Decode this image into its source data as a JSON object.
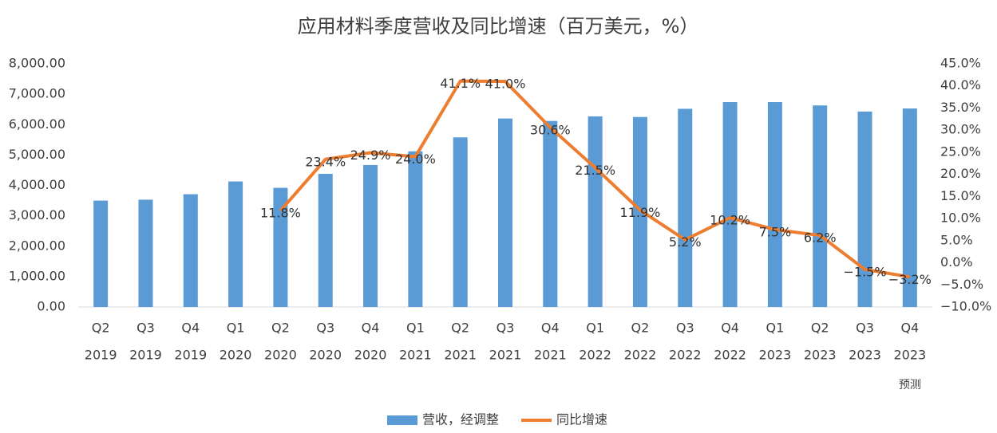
{
  "chart_data": {
    "type": "bar-line",
    "title": "应用材料季度营收及同比增速（百万美元，%）",
    "categories": [
      [
        "Q2",
        "2019"
      ],
      [
        "Q3",
        "2019"
      ],
      [
        "Q4",
        "2019"
      ],
      [
        "Q1",
        "2020"
      ],
      [
        "Q2",
        "2020"
      ],
      [
        "Q3",
        "2020"
      ],
      [
        "Q4",
        "2020"
      ],
      [
        "Q1",
        "2021"
      ],
      [
        "Q2",
        "2021"
      ],
      [
        "Q3",
        "2021"
      ],
      [
        "Q4",
        "2021"
      ],
      [
        "Q1",
        "2022"
      ],
      [
        "Q2",
        "2022"
      ],
      [
        "Q3",
        "2022"
      ],
      [
        "Q4",
        "2022"
      ],
      [
        "Q1",
        "2023"
      ],
      [
        "Q2",
        "2023"
      ],
      [
        "Q3",
        "2023"
      ],
      [
        "Q4",
        "2023",
        "预测"
      ]
    ],
    "series": [
      {
        "name": "营收，经调整",
        "color": "#5b9bd5",
        "type": "bar",
        "axis": "y",
        "values": [
          3500,
          3530,
          3710,
          4130,
          3920,
          4380,
          4670,
          5120,
          5580,
          6200,
          6120,
          6270,
          6250,
          6520,
          6740,
          6740,
          6630,
          6430,
          6530
        ]
      },
      {
        "name": "同比增速",
        "color": "#ed7d31",
        "type": "line",
        "axis": "y2",
        "values": [
          null,
          null,
          null,
          null,
          11.8,
          23.4,
          24.9,
          24.0,
          41.1,
          41.0,
          30.6,
          21.5,
          11.9,
          5.2,
          10.2,
          7.5,
          6.2,
          -1.5,
          -3.2
        ],
        "value_labels": [
          null,
          null,
          null,
          null,
          "11.8%",
          "23.4%",
          "24.9%",
          "24.0%",
          "41.1%",
          "41.0%",
          "30.6%",
          "21.5%",
          "11.9%",
          "5.2%",
          "10.2%",
          "7.5%",
          "6.2%",
          "−1.5%",
          "−3.2%"
        ]
      }
    ],
    "ylim": [
      0,
      8000
    ],
    "yticks": [
      {
        "value": 0,
        "label": "0.00"
      },
      {
        "value": 1000,
        "label": "1,000.00"
      },
      {
        "value": 2000,
        "label": "2,000.00"
      },
      {
        "value": 3000,
        "label": "3,000.00"
      },
      {
        "value": 4000,
        "label": "4,000.00"
      },
      {
        "value": 5000,
        "label": "5,000.00"
      },
      {
        "value": 6000,
        "label": "6,000.00"
      },
      {
        "value": 7000,
        "label": "7,000.00"
      },
      {
        "value": 8000,
        "label": "8,000.00"
      }
    ],
    "y2lim": [
      -10,
      45
    ],
    "y2ticks": [
      {
        "value": -10,
        "label": "−10.0%"
      },
      {
        "value": -5,
        "label": "−5.0%"
      },
      {
        "value": 0,
        "label": "0.0%"
      },
      {
        "value": 5,
        "label": "5.0%"
      },
      {
        "value": 10,
        "label": "10.0%"
      },
      {
        "value": 15,
        "label": "15.0%"
      },
      {
        "value": 20,
        "label": "20.0%"
      },
      {
        "value": 25,
        "label": "25.0%"
      },
      {
        "value": 30,
        "label": "30.0%"
      },
      {
        "value": 35,
        "label": "35.0%"
      },
      {
        "value": 40,
        "label": "40.0%"
      },
      {
        "value": 45,
        "label": "45.0%"
      }
    ],
    "legend": "bottom"
  }
}
